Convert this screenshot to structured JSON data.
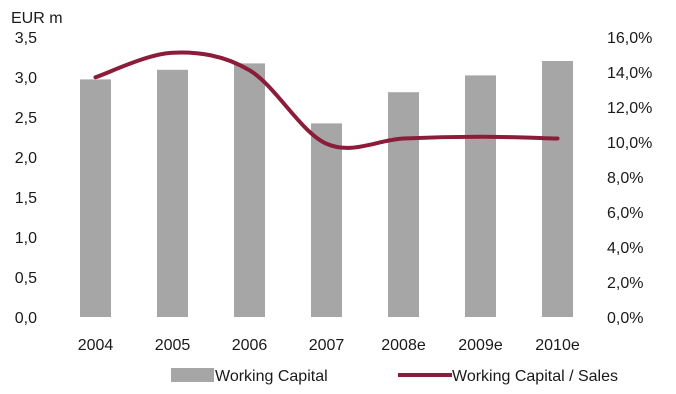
{
  "chart_data": {
    "type": "bar",
    "ylabel": "EUR m",
    "categories": [
      "2004",
      "2005",
      "2006",
      "2007",
      "2008e",
      "2009e",
      "2010e"
    ],
    "ylim": [
      0,
      3.5
    ],
    "y_ticks": [
      "0,0",
      "0,5",
      "1,0",
      "1,5",
      "2,0",
      "2,5",
      "3,0",
      "3,5"
    ],
    "y2lim": [
      0,
      16
    ],
    "y2_ticks": [
      "0,0%",
      "2,0%",
      "4,0%",
      "6,0%",
      "8,0%",
      "10,0%",
      "12,0%",
      "14,0%",
      "16,0%"
    ],
    "grid": false,
    "legend_position": "bottom",
    "series": [
      {
        "name": "Working Capital",
        "type": "bar",
        "axis": "left",
        "color": "#a6a6a6",
        "values": [
          2.97,
          3.09,
          3.17,
          2.42,
          2.81,
          3.02,
          3.2
        ]
      },
      {
        "name": "Working Capital / Sales",
        "type": "line",
        "axis": "right",
        "color": "#8b1c3a",
        "values": [
          13.7,
          15.1,
          14.1,
          9.9,
          10.2,
          10.3,
          10.2
        ]
      }
    ]
  }
}
